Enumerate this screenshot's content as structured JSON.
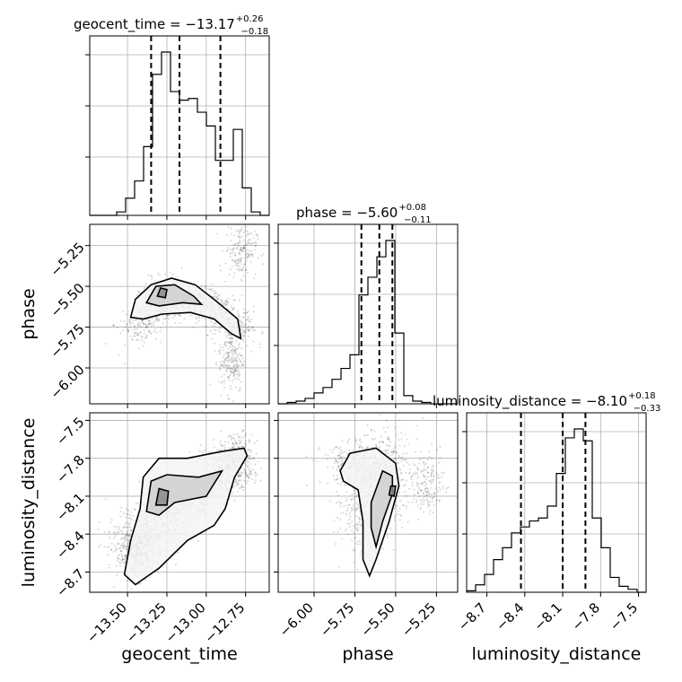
{
  "chart_data": {
    "type": "corner",
    "parameters": [
      "geocent_time",
      "phase",
      "luminosity_distance"
    ],
    "titles": [
      {
        "param": "geocent_time",
        "median": -13.17,
        "plus": 0.26,
        "minus": 0.18,
        "text": "geocent_time = −13.17",
        "plus_text": "+0.26",
        "minus_text": "−0.18"
      },
      {
        "param": "phase",
        "median": -5.6,
        "plus": 0.08,
        "minus": 0.11,
        "text": "phase = −5.60",
        "plus_text": "+0.08",
        "minus_text": "−0.11"
      },
      {
        "param": "luminosity_distance",
        "median": -8.1,
        "plus": 0.18,
        "minus": 0.33,
        "text": "luminosity_distance = −8.10",
        "plus_text": "+0.18",
        "minus_text": "−0.33"
      }
    ],
    "axes": {
      "geocent_time": {
        "range": [
          -13.74,
          -12.6
        ],
        "ticks": [
          -13.5,
          -13.25,
          -13.0,
          -12.75
        ],
        "tick_labels": [
          "−13.50",
          "−13.25",
          "−13.00",
          "−12.75"
        ],
        "label": "geocent_time"
      },
      "phase": {
        "range": [
          -6.22,
          -5.12
        ],
        "ticks": [
          -6.0,
          -5.75,
          -5.5,
          -5.25
        ],
        "tick_labels": [
          "−6.00",
          "−5.75",
          "−5.50",
          "−5.25"
        ],
        "label": "phase"
      },
      "luminosity_distance": {
        "range": [
          -8.86,
          -7.44
        ],
        "ticks": [
          -8.7,
          -8.4,
          -8.1,
          -7.8,
          -7.5
        ],
        "tick_labels": [
          "−8.7",
          "−8.4",
          "−8.1",
          "−7.8",
          "−7.5"
        ],
        "label": "luminosity_distance"
      }
    },
    "quantile_lines": {
      "geocent_time": [
        -13.35,
        -13.17,
        -12.91
      ],
      "phase": [
        -5.71,
        -5.6,
        -5.52
      ],
      "luminosity_distance": [
        -8.43,
        -8.1,
        -7.92
      ]
    },
    "histograms": {
      "geocent_time": {
        "edges": [
          -13.74,
          -13.683,
          -13.626,
          -13.569,
          -13.512,
          -13.455,
          -13.398,
          -13.341,
          -13.284,
          -13.227,
          -13.17,
          -13.113,
          -13.056,
          -12.999,
          -12.942,
          -12.885,
          -12.828,
          -12.771,
          -12.714,
          -12.657,
          -12.6
        ],
        "counts": [
          0,
          0,
          0,
          2,
          10,
          20,
          40,
          82,
          95,
          72,
          67,
          68,
          60,
          52,
          32,
          32,
          50,
          16,
          2,
          0
        ]
      },
      "phase": {
        "edges": [
          -6.22,
          -6.165,
          -6.11,
          -6.055,
          -6.0,
          -5.945,
          -5.89,
          -5.835,
          -5.78,
          -5.725,
          -5.67,
          -5.615,
          -5.56,
          -5.505,
          -5.45,
          -5.395,
          -5.34,
          -5.285,
          -5.23,
          -5.175,
          -5.12
        ],
        "counts": [
          0,
          1,
          2,
          4,
          8,
          12,
          18,
          26,
          36,
          80,
          93,
          108,
          120,
          52,
          6,
          2,
          1,
          0,
          0,
          0
        ]
      },
      "luminosity_distance": {
        "edges": [
          -8.86,
          -8.789,
          -8.718,
          -8.647,
          -8.576,
          -8.505,
          -8.434,
          -8.363,
          -8.292,
          -8.221,
          -8.15,
          -8.079,
          -8.008,
          -7.937,
          -7.866,
          -7.795,
          -7.724,
          -7.653,
          -7.582,
          -7.511,
          -7.44
        ],
        "counts": [
          1,
          5,
          12,
          22,
          30,
          40,
          44,
          48,
          50,
          58,
          80,
          104,
          110,
          102,
          50,
          30,
          10,
          4,
          2,
          0
        ]
      }
    },
    "hist2d": {
      "phase_vs_geocent_time": {
        "x": "geocent_time",
        "y": "phase",
        "peak": [
          -13.28,
          -5.53
        ],
        "contour_levels": [
          "outer",
          "middle",
          "inner"
        ]
      },
      "luminosity_distance_vs_geocent_time": {
        "x": "geocent_time",
        "y": "luminosity_distance",
        "peak": [
          -13.29,
          -8.1
        ],
        "contour_levels": [
          "outer",
          "middle",
          "inner"
        ]
      },
      "luminosity_distance_vs_phase": {
        "x": "phase",
        "y": "luminosity_distance",
        "peak": [
          -5.52,
          -8.05
        ],
        "contour_levels": [
          "outer",
          "middle",
          "inner"
        ]
      }
    },
    "grid": true
  }
}
